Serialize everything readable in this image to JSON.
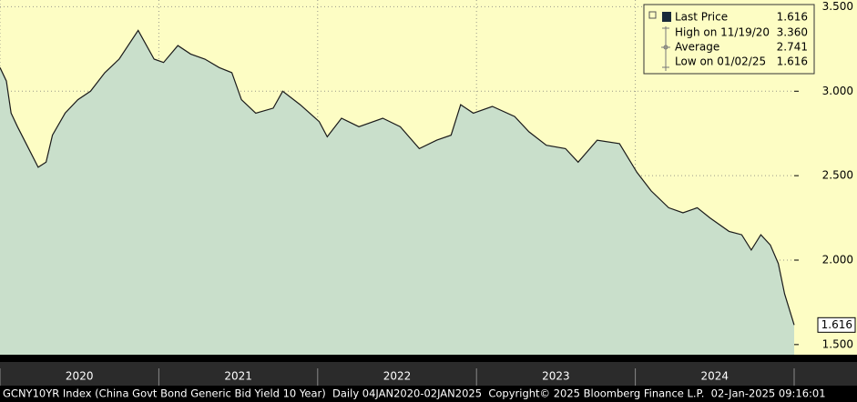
{
  "chart_data": {
    "type": "area",
    "series": [
      {
        "name": "Last Price",
        "color": "#1a1a1a",
        "fill": "#c9dfcb",
        "x": [
          2020.0,
          2020.04,
          2020.07,
          2020.11,
          2020.17,
          2020.24,
          2020.29,
          2020.33,
          2020.41,
          2020.49,
          2020.57,
          2020.66,
          2020.75,
          2020.87,
          2020.97,
          2021.03,
          2021.12,
          2021.2,
          2021.29,
          2021.38,
          2021.46,
          2021.52,
          2021.61,
          2021.72,
          2021.78,
          2021.89,
          2022.01,
          2022.06,
          2022.15,
          2022.26,
          2022.41,
          2022.52,
          2022.64,
          2022.75,
          2022.84,
          2022.9,
          2022.98,
          2023.1,
          2023.24,
          2023.33,
          2023.44,
          2023.56,
          2023.64,
          2023.76,
          2023.9,
          2024.01,
          2024.1,
          2024.21,
          2024.3,
          2024.39,
          2024.47,
          2024.59,
          2024.67,
          2024.73,
          2024.79,
          2024.85,
          2024.9,
          2024.94,
          2025.0
        ],
        "values": [
          3.14,
          3.06,
          2.87,
          2.79,
          2.68,
          2.55,
          2.58,
          2.74,
          2.87,
          2.95,
          3.0,
          3.11,
          3.19,
          3.36,
          3.19,
          3.17,
          3.27,
          3.22,
          3.19,
          3.14,
          3.11,
          2.95,
          2.87,
          2.9,
          3.0,
          2.92,
          2.82,
          2.73,
          2.84,
          2.79,
          2.84,
          2.79,
          2.66,
          2.71,
          2.74,
          2.92,
          2.87,
          2.91,
          2.85,
          2.76,
          2.68,
          2.66,
          2.58,
          2.71,
          2.69,
          2.52,
          2.41,
          2.31,
          2.28,
          2.31,
          2.25,
          2.17,
          2.15,
          2.06,
          2.15,
          2.09,
          1.98,
          1.8,
          1.616
        ]
      }
    ],
    "xlim": [
      2020.0,
      2025.0
    ],
    "xticks": [
      {
        "value": 2020,
        "label": "2020"
      },
      {
        "value": 2021,
        "label": "2021"
      },
      {
        "value": 2022,
        "label": "2022"
      },
      {
        "value": 2023,
        "label": "2023"
      },
      {
        "value": 2024,
        "label": "2024"
      }
    ],
    "ylim": [
      1.44,
      3.54
    ],
    "yticks": [
      {
        "value": 1.5,
        "label": "1.500"
      },
      {
        "value": 2.0,
        "label": "2.000"
      },
      {
        "value": 2.5,
        "label": "2.500"
      },
      {
        "value": 3.0,
        "label": "3.000"
      },
      {
        "value": 3.5,
        "label": "3.500"
      }
    ],
    "grid": true,
    "background": "#fdfdc4",
    "stats": {
      "labels": [
        "Last Price",
        "High on 11/19/20",
        "Average",
        "Low on 01/02/25"
      ],
      "values": [
        1.616,
        3.36,
        2.741,
        1.616
      ],
      "value_labels": [
        "1.616",
        "3.360",
        "2.741",
        "1.616"
      ]
    },
    "footer": "GCNY10YR Index (China Govt Bond Generic Bid Yield 10 Year)  Daily 04JAN2020-02JAN2025  Copyright© 2025 Bloomberg Finance L.P.  02-Jan-2025 09:16:01"
  }
}
